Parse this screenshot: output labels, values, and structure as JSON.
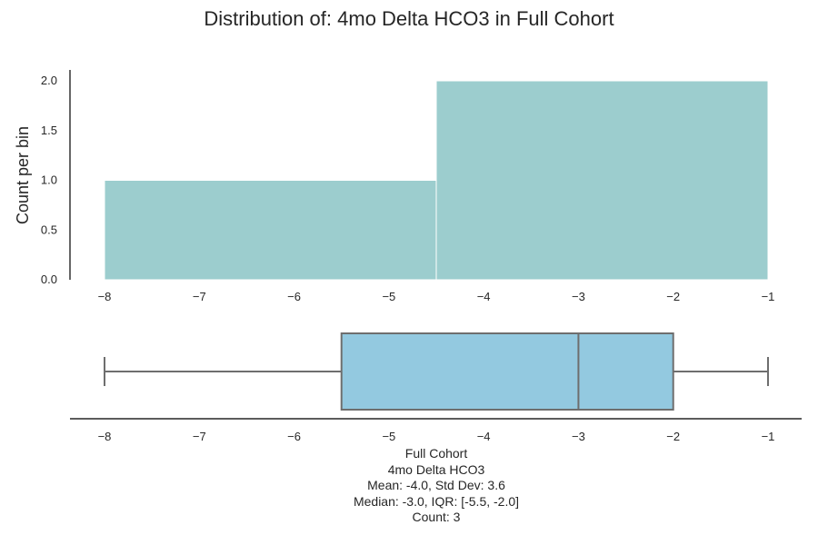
{
  "figure": {
    "title": "Distribution of: 4mo Delta HCO3 in Full Cohort"
  },
  "chart_data": [
    {
      "type": "histogram",
      "bins": [
        {
          "x0": -8.0,
          "x1": -4.5,
          "count": 1
        },
        {
          "x0": -4.5,
          "x1": -1.0,
          "count": 2
        }
      ],
      "ylabel": "Count per bin",
      "xlim": [
        -8,
        -1
      ],
      "ylim": [
        0,
        2
      ],
      "x_ticks": [
        -8,
        -7,
        -6,
        -5,
        -4,
        -3,
        -2,
        -1
      ],
      "y_ticks": [
        0.0,
        0.5,
        1.0,
        1.5,
        2.0
      ],
      "bar_color": "#9ccdce",
      "grid": false
    },
    {
      "type": "boxplot",
      "orientation": "horizontal",
      "whisker_low": -8.0,
      "q1": -5.5,
      "median": -3.0,
      "q3": -2.0,
      "whisker_high": -1.0,
      "x_ticks": [
        -8,
        -7,
        -6,
        -5,
        -4,
        -3,
        -2,
        -1
      ],
      "box_color": "#93c9e0",
      "line_color": "#6e6e6e",
      "grid": false
    }
  ],
  "caption": {
    "line1": "Full Cohort",
    "line2": "4mo Delta HCO3",
    "line3": "Mean: -4.0, Std Dev: 3.6",
    "line4": "Median: -3.0, IQR: [-5.5, -2.0]",
    "line5": "Count: 3"
  }
}
